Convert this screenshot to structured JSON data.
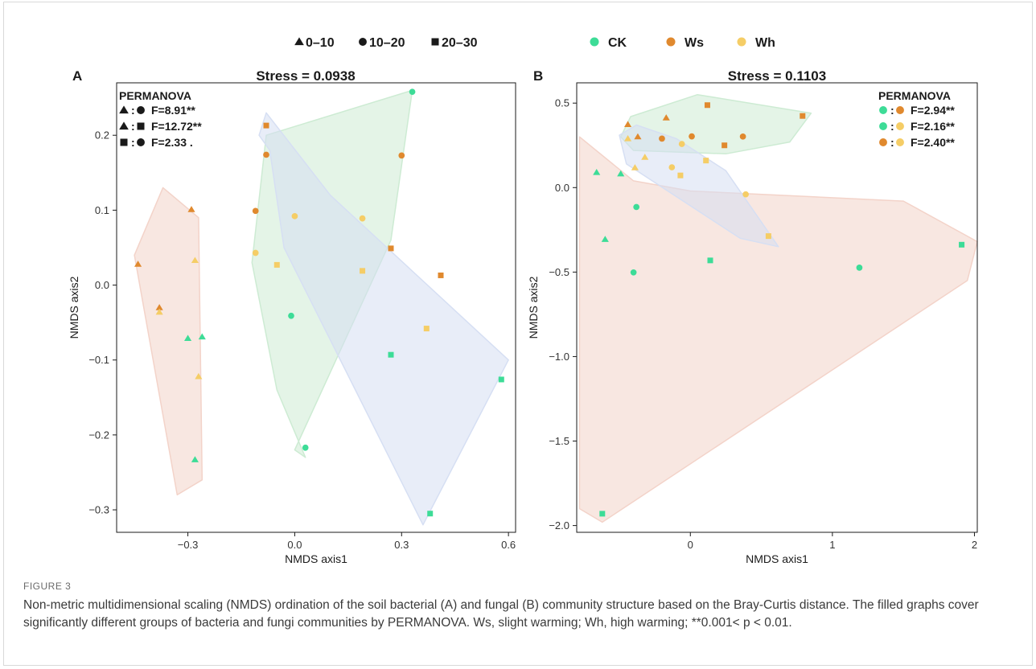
{
  "legend": {
    "depth": [
      {
        "shape": "triangle",
        "label": "0–10"
      },
      {
        "shape": "circle",
        "label": "10–20"
      },
      {
        "shape": "square",
        "label": "20–30"
      }
    ],
    "treatment": [
      {
        "name": "CK",
        "color": "#3ddc97"
      },
      {
        "name": "Ws",
        "color": "#e0892e"
      },
      {
        "name": "Wh",
        "color": "#f5cd66"
      }
    ]
  },
  "chart_data": [
    {
      "type": "scatter",
      "panel": "A",
      "title": "Stress = 0.0938",
      "xlabel": "NMDS axis1",
      "ylabel": "NMDS axis2",
      "xlim": [
        -0.5,
        0.62
      ],
      "ylim": [
        -0.33,
        0.27
      ],
      "xticks": [
        -0.3,
        0,
        0.3,
        0.6
      ],
      "yticks": [
        -0.3,
        -0.2,
        -0.1,
        0.0,
        0.1,
        0.2
      ],
      "xtick_labels": [
        "−0.3",
        "0.0",
        "0.3",
        "0.6"
      ],
      "ytick_labels": [
        "−0.3",
        "−0.2",
        "−0.1",
        "0.0",
        "0.1",
        "0.2"
      ],
      "permanova": {
        "title": "PERMANOVA",
        "position": "top-left",
        "rows": [
          {
            "a": "triangle",
            "b": "circle",
            "text": "F=8.91**"
          },
          {
            "a": "triangle",
            "b": "square",
            "text": "F=12.72**"
          },
          {
            "a": "square",
            "b": "circle",
            "text": "F=2.33 ."
          }
        ]
      },
      "hulls": [
        {
          "group": "0–10",
          "color": "#f3d3c9",
          "points": [
            [
              -0.33,
              -0.28
            ],
            [
              -0.45,
              0.04
            ],
            [
              -0.37,
              0.13
            ],
            [
              -0.27,
              0.09
            ],
            [
              -0.26,
              -0.26
            ]
          ]
        },
        {
          "group": "10–20",
          "color": "#cdebd3",
          "points": [
            [
              0.03,
              -0.23
            ],
            [
              -0.05,
              -0.14
            ],
            [
              -0.12,
              0.03
            ],
            [
              -0.08,
              0.2
            ],
            [
              0.33,
              0.26
            ],
            [
              0.27,
              0.06
            ],
            [
              0.0,
              -0.22
            ]
          ]
        },
        {
          "group": "20–30",
          "color": "#d6dff3",
          "points": [
            [
              -0.1,
              0.2
            ],
            [
              -0.08,
              0.23
            ],
            [
              0.1,
              0.12
            ],
            [
              0.6,
              -0.1
            ],
            [
              0.36,
              -0.32
            ],
            [
              -0.03,
              0.05
            ],
            [
              -0.07,
              0.18
            ]
          ]
        }
      ],
      "points": [
        {
          "x": 0.33,
          "y": 0.258,
          "shape": "circle",
          "group": "CK"
        },
        {
          "x": -0.01,
          "y": -0.041,
          "shape": "circle",
          "group": "CK"
        },
        {
          "x": 0.03,
          "y": -0.217,
          "shape": "circle",
          "group": "CK"
        },
        {
          "x": -0.3,
          "y": -0.071,
          "shape": "triangle",
          "group": "CK"
        },
        {
          "x": -0.26,
          "y": -0.069,
          "shape": "triangle",
          "group": "CK"
        },
        {
          "x": -0.28,
          "y": -0.233,
          "shape": "triangle",
          "group": "CK"
        },
        {
          "x": 0.27,
          "y": -0.093,
          "shape": "square",
          "group": "CK"
        },
        {
          "x": 0.58,
          "y": -0.126,
          "shape": "square",
          "group": "CK"
        },
        {
          "x": 0.38,
          "y": -0.305,
          "shape": "square",
          "group": "CK"
        },
        {
          "x": -0.08,
          "y": 0.174,
          "shape": "circle",
          "group": "Ws"
        },
        {
          "x": 0.3,
          "y": 0.173,
          "shape": "circle",
          "group": "Ws"
        },
        {
          "x": -0.11,
          "y": 0.099,
          "shape": "circle",
          "group": "Ws"
        },
        {
          "x": -0.29,
          "y": 0.101,
          "shape": "triangle",
          "group": "Ws"
        },
        {
          "x": -0.44,
          "y": 0.028,
          "shape": "triangle",
          "group": "Ws"
        },
        {
          "x": -0.38,
          "y": -0.03,
          "shape": "triangle",
          "group": "Ws"
        },
        {
          "x": -0.08,
          "y": 0.213,
          "shape": "square",
          "group": "Ws"
        },
        {
          "x": 0.27,
          "y": 0.049,
          "shape": "square",
          "group": "Ws"
        },
        {
          "x": 0.41,
          "y": 0.013,
          "shape": "square",
          "group": "Ws"
        },
        {
          "x": 0.0,
          "y": 0.092,
          "shape": "circle",
          "group": "Wh"
        },
        {
          "x": 0.19,
          "y": 0.089,
          "shape": "circle",
          "group": "Wh"
        },
        {
          "x": -0.11,
          "y": 0.043,
          "shape": "circle",
          "group": "Wh"
        },
        {
          "x": -0.28,
          "y": 0.033,
          "shape": "triangle",
          "group": "Wh"
        },
        {
          "x": -0.38,
          "y": -0.036,
          "shape": "triangle",
          "group": "Wh"
        },
        {
          "x": -0.27,
          "y": -0.122,
          "shape": "triangle",
          "group": "Wh"
        },
        {
          "x": -0.05,
          "y": 0.027,
          "shape": "square",
          "group": "Wh"
        },
        {
          "x": 0.19,
          "y": 0.019,
          "shape": "square",
          "group": "Wh"
        },
        {
          "x": 0.37,
          "y": -0.058,
          "shape": "square",
          "group": "Wh"
        }
      ]
    },
    {
      "type": "scatter",
      "panel": "B",
      "title": "Stress = 0.1103",
      "xlabel": "NMDS axis1",
      "ylabel": "NMDS axis2",
      "xlim": [
        -0.8,
        2.02
      ],
      "ylim": [
        -2.04,
        0.62
      ],
      "xticks": [
        0,
        1,
        2
      ],
      "yticks": [
        -2.0,
        -1.5,
        -1.0,
        -0.5,
        0.0,
        0.5
      ],
      "xtick_labels": [
        "0",
        "1",
        "2"
      ],
      "ytick_labels": [
        "−2.0",
        "−1.5",
        "−1.0",
        "−0.5",
        "0.0",
        "0.5"
      ],
      "permanova": {
        "title": "PERMANOVA",
        "position": "top-right",
        "rows": [
          {
            "a": "CK",
            "b": "Ws",
            "text": "F=2.94**"
          },
          {
            "a": "CK",
            "b": "Wh",
            "text": "F=2.16**"
          },
          {
            "a": "Ws",
            "b": "Wh",
            "text": "F=2.40**"
          }
        ]
      },
      "hulls": [
        {
          "group": "CK",
          "color": "#f3d3c9",
          "points": [
            [
              -0.78,
              0.05
            ],
            [
              -0.78,
              0.3
            ],
            [
              -0.4,
              0.04
            ],
            [
              0.0,
              -0.02
            ],
            [
              1.5,
              -0.08
            ],
            [
              2.02,
              -0.32
            ],
            [
              1.95,
              -0.55
            ],
            [
              -0.62,
              -1.98
            ],
            [
              -0.78,
              -1.9
            ]
          ]
        },
        {
          "group": "Ws",
          "color": "#cdebd3",
          "points": [
            [
              -0.49,
              0.3
            ],
            [
              -0.42,
              0.42
            ],
            [
              0.05,
              0.55
            ],
            [
              0.85,
              0.44
            ],
            [
              0.7,
              0.27
            ],
            [
              0.25,
              0.2
            ],
            [
              -0.4,
              0.22
            ]
          ]
        },
        {
          "group": "Wh",
          "color": "#d6dff3",
          "points": [
            [
              -0.5,
              0.31
            ],
            [
              -0.38,
              0.37
            ],
            [
              -0.1,
              0.29
            ],
            [
              0.25,
              0.1
            ],
            [
              0.62,
              -0.35
            ],
            [
              0.35,
              -0.3
            ],
            [
              -0.45,
              0.14
            ]
          ]
        }
      ],
      "points": [
        {
          "x": -0.38,
          "y": -0.115,
          "shape": "circle",
          "group": "CK"
        },
        {
          "x": -0.4,
          "y": -0.502,
          "shape": "circle",
          "group": "CK"
        },
        {
          "x": 1.19,
          "y": -0.474,
          "shape": "circle",
          "group": "CK"
        },
        {
          "x": -0.66,
          "y": 0.09,
          "shape": "triangle",
          "group": "CK"
        },
        {
          "x": -0.49,
          "y": 0.082,
          "shape": "triangle",
          "group": "CK"
        },
        {
          "x": -0.6,
          "y": -0.306,
          "shape": "triangle",
          "group": "CK"
        },
        {
          "x": 0.14,
          "y": -0.431,
          "shape": "square",
          "group": "CK"
        },
        {
          "x": 1.91,
          "y": -0.338,
          "shape": "square",
          "group": "CK"
        },
        {
          "x": -0.62,
          "y": -1.93,
          "shape": "square",
          "group": "CK"
        },
        {
          "x": -0.2,
          "y": 0.29,
          "shape": "circle",
          "group": "Ws"
        },
        {
          "x": 0.01,
          "y": 0.303,
          "shape": "circle",
          "group": "Ws"
        },
        {
          "x": 0.37,
          "y": 0.302,
          "shape": "circle",
          "group": "Ws"
        },
        {
          "x": -0.44,
          "y": 0.374,
          "shape": "triangle",
          "group": "Ws"
        },
        {
          "x": -0.17,
          "y": 0.413,
          "shape": "triangle",
          "group": "Ws"
        },
        {
          "x": -0.37,
          "y": 0.301,
          "shape": "triangle",
          "group": "Ws"
        },
        {
          "x": 0.12,
          "y": 0.488,
          "shape": "square",
          "group": "Ws"
        },
        {
          "x": 0.79,
          "y": 0.424,
          "shape": "square",
          "group": "Ws"
        },
        {
          "x": 0.24,
          "y": 0.25,
          "shape": "square",
          "group": "Ws"
        },
        {
          "x": -0.06,
          "y": 0.258,
          "shape": "circle",
          "group": "Wh"
        },
        {
          "x": -0.13,
          "y": 0.12,
          "shape": "circle",
          "group": "Wh"
        },
        {
          "x": 0.39,
          "y": -0.04,
          "shape": "circle",
          "group": "Wh"
        },
        {
          "x": -0.44,
          "y": 0.29,
          "shape": "triangle",
          "group": "Wh"
        },
        {
          "x": -0.32,
          "y": 0.18,
          "shape": "triangle",
          "group": "Wh"
        },
        {
          "x": -0.39,
          "y": 0.118,
          "shape": "triangle",
          "group": "Wh"
        },
        {
          "x": 0.11,
          "y": 0.16,
          "shape": "square",
          "group": "Wh"
        },
        {
          "x": -0.07,
          "y": 0.072,
          "shape": "square",
          "group": "Wh"
        },
        {
          "x": 0.55,
          "y": -0.287,
          "shape": "square",
          "group": "Wh"
        }
      ]
    }
  ],
  "caption": {
    "label": "FIGURE 3",
    "text": "Non-metric multidimensional scaling (NMDS) ordination of the soil bacterial (A) and fungal (B) community structure based on the Bray-Curtis distance. The filled graphs cover significantly different groups of bacteria and fungi communities by PERMANOVA. Ws, slight warming; Wh, high warming; **0.001< p < 0.01."
  }
}
